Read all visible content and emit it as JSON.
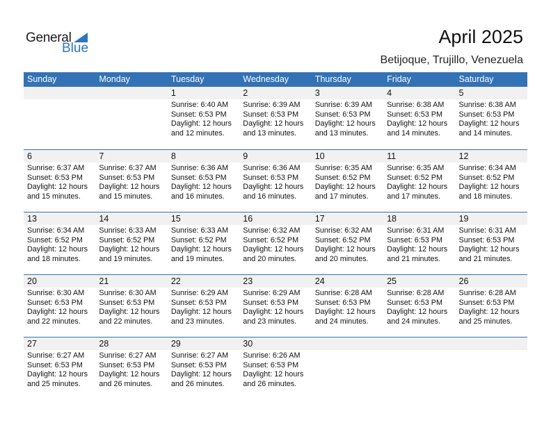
{
  "logo": {
    "text1": "General",
    "text2": "Blue"
  },
  "title": "April 2025",
  "location": "Betijoque, Trujillo, Venezuela",
  "colors": {
    "header": "#3372b4",
    "row_shade": "#f1f1f1"
  },
  "weekdays": [
    "Sunday",
    "Monday",
    "Tuesday",
    "Wednesday",
    "Thursday",
    "Friday",
    "Saturday"
  ],
  "weeks": [
    [
      null,
      null,
      {
        "day": "1",
        "sunrise": "Sunrise: 6:40 AM",
        "sunset": "Sunset: 6:53 PM",
        "daylight1": "Daylight: 12 hours",
        "daylight2": "and 12 minutes."
      },
      {
        "day": "2",
        "sunrise": "Sunrise: 6:39 AM",
        "sunset": "Sunset: 6:53 PM",
        "daylight1": "Daylight: 12 hours",
        "daylight2": "and 13 minutes."
      },
      {
        "day": "3",
        "sunrise": "Sunrise: 6:39 AM",
        "sunset": "Sunset: 6:53 PM",
        "daylight1": "Daylight: 12 hours",
        "daylight2": "and 13 minutes."
      },
      {
        "day": "4",
        "sunrise": "Sunrise: 6:38 AM",
        "sunset": "Sunset: 6:53 PM",
        "daylight1": "Daylight: 12 hours",
        "daylight2": "and 14 minutes."
      },
      {
        "day": "5",
        "sunrise": "Sunrise: 6:38 AM",
        "sunset": "Sunset: 6:53 PM",
        "daylight1": "Daylight: 12 hours",
        "daylight2": "and 14 minutes."
      }
    ],
    [
      {
        "day": "6",
        "sunrise": "Sunrise: 6:37 AM",
        "sunset": "Sunset: 6:53 PM",
        "daylight1": "Daylight: 12 hours",
        "daylight2": "and 15 minutes."
      },
      {
        "day": "7",
        "sunrise": "Sunrise: 6:37 AM",
        "sunset": "Sunset: 6:53 PM",
        "daylight1": "Daylight: 12 hours",
        "daylight2": "and 15 minutes."
      },
      {
        "day": "8",
        "sunrise": "Sunrise: 6:36 AM",
        "sunset": "Sunset: 6:53 PM",
        "daylight1": "Daylight: 12 hours",
        "daylight2": "and 16 minutes."
      },
      {
        "day": "9",
        "sunrise": "Sunrise: 6:36 AM",
        "sunset": "Sunset: 6:53 PM",
        "daylight1": "Daylight: 12 hours",
        "daylight2": "and 16 minutes."
      },
      {
        "day": "10",
        "sunrise": "Sunrise: 6:35 AM",
        "sunset": "Sunset: 6:52 PM",
        "daylight1": "Daylight: 12 hours",
        "daylight2": "and 17 minutes."
      },
      {
        "day": "11",
        "sunrise": "Sunrise: 6:35 AM",
        "sunset": "Sunset: 6:52 PM",
        "daylight1": "Daylight: 12 hours",
        "daylight2": "and 17 minutes."
      },
      {
        "day": "12",
        "sunrise": "Sunrise: 6:34 AM",
        "sunset": "Sunset: 6:52 PM",
        "daylight1": "Daylight: 12 hours",
        "daylight2": "and 18 minutes."
      }
    ],
    [
      {
        "day": "13",
        "sunrise": "Sunrise: 6:34 AM",
        "sunset": "Sunset: 6:52 PM",
        "daylight1": "Daylight: 12 hours",
        "daylight2": "and 18 minutes."
      },
      {
        "day": "14",
        "sunrise": "Sunrise: 6:33 AM",
        "sunset": "Sunset: 6:52 PM",
        "daylight1": "Daylight: 12 hours",
        "daylight2": "and 19 minutes."
      },
      {
        "day": "15",
        "sunrise": "Sunrise: 6:33 AM",
        "sunset": "Sunset: 6:52 PM",
        "daylight1": "Daylight: 12 hours",
        "daylight2": "and 19 minutes."
      },
      {
        "day": "16",
        "sunrise": "Sunrise: 6:32 AM",
        "sunset": "Sunset: 6:52 PM",
        "daylight1": "Daylight: 12 hours",
        "daylight2": "and 20 minutes."
      },
      {
        "day": "17",
        "sunrise": "Sunrise: 6:32 AM",
        "sunset": "Sunset: 6:52 PM",
        "daylight1": "Daylight: 12 hours",
        "daylight2": "and 20 minutes."
      },
      {
        "day": "18",
        "sunrise": "Sunrise: 6:31 AM",
        "sunset": "Sunset: 6:53 PM",
        "daylight1": "Daylight: 12 hours",
        "daylight2": "and 21 minutes."
      },
      {
        "day": "19",
        "sunrise": "Sunrise: 6:31 AM",
        "sunset": "Sunset: 6:53 PM",
        "daylight1": "Daylight: 12 hours",
        "daylight2": "and 21 minutes."
      }
    ],
    [
      {
        "day": "20",
        "sunrise": "Sunrise: 6:30 AM",
        "sunset": "Sunset: 6:53 PM",
        "daylight1": "Daylight: 12 hours",
        "daylight2": "and 22 minutes."
      },
      {
        "day": "21",
        "sunrise": "Sunrise: 6:30 AM",
        "sunset": "Sunset: 6:53 PM",
        "daylight1": "Daylight: 12 hours",
        "daylight2": "and 22 minutes."
      },
      {
        "day": "22",
        "sunrise": "Sunrise: 6:29 AM",
        "sunset": "Sunset: 6:53 PM",
        "daylight1": "Daylight: 12 hours",
        "daylight2": "and 23 minutes."
      },
      {
        "day": "23",
        "sunrise": "Sunrise: 6:29 AM",
        "sunset": "Sunset: 6:53 PM",
        "daylight1": "Daylight: 12 hours",
        "daylight2": "and 23 minutes."
      },
      {
        "day": "24",
        "sunrise": "Sunrise: 6:28 AM",
        "sunset": "Sunset: 6:53 PM",
        "daylight1": "Daylight: 12 hours",
        "daylight2": "and 24 minutes."
      },
      {
        "day": "25",
        "sunrise": "Sunrise: 6:28 AM",
        "sunset": "Sunset: 6:53 PM",
        "daylight1": "Daylight: 12 hours",
        "daylight2": "and 24 minutes."
      },
      {
        "day": "26",
        "sunrise": "Sunrise: 6:28 AM",
        "sunset": "Sunset: 6:53 PM",
        "daylight1": "Daylight: 12 hours",
        "daylight2": "and 25 minutes."
      }
    ],
    [
      {
        "day": "27",
        "sunrise": "Sunrise: 6:27 AM",
        "sunset": "Sunset: 6:53 PM",
        "daylight1": "Daylight: 12 hours",
        "daylight2": "and 25 minutes."
      },
      {
        "day": "28",
        "sunrise": "Sunrise: 6:27 AM",
        "sunset": "Sunset: 6:53 PM",
        "daylight1": "Daylight: 12 hours",
        "daylight2": "and 26 minutes."
      },
      {
        "day": "29",
        "sunrise": "Sunrise: 6:27 AM",
        "sunset": "Sunset: 6:53 PM",
        "daylight1": "Daylight: 12 hours",
        "daylight2": "and 26 minutes."
      },
      {
        "day": "30",
        "sunrise": "Sunrise: 6:26 AM",
        "sunset": "Sunset: 6:53 PM",
        "daylight1": "Daylight: 12 hours",
        "daylight2": "and 26 minutes."
      },
      null,
      null,
      null
    ]
  ]
}
